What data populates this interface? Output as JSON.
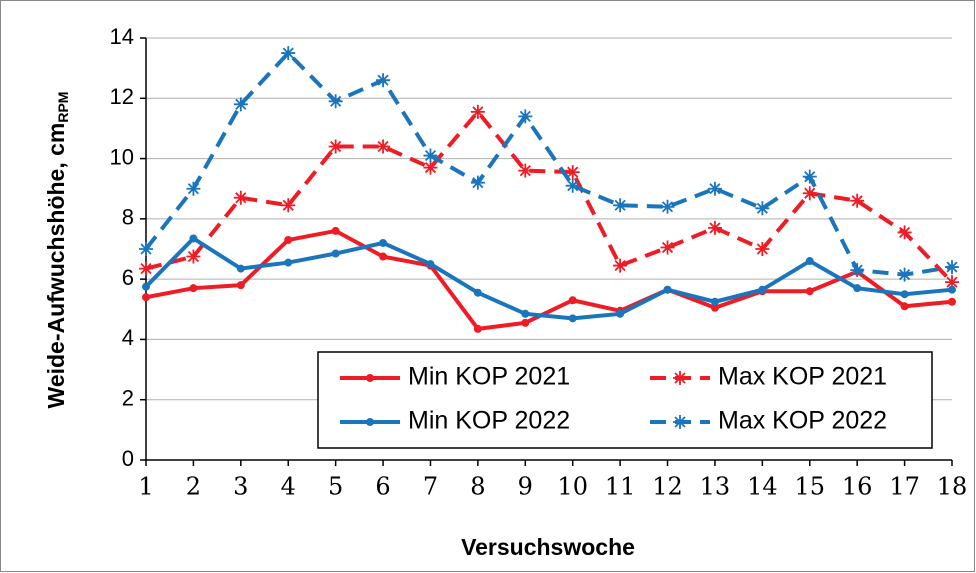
{
  "chart_data": {
    "type": "line",
    "xlabel": "Versuchswoche",
    "ylabel": "Weide-Aufwuchshöhe, cm",
    "ylabel_sub": "RPM",
    "x": [
      1,
      2,
      3,
      4,
      5,
      6,
      7,
      8,
      9,
      10,
      11,
      12,
      13,
      14,
      15,
      16,
      17,
      18
    ],
    "xlim": [
      1,
      18
    ],
    "xticks": [
      1,
      2,
      3,
      4,
      5,
      6,
      7,
      8,
      9,
      10,
      11,
      12,
      13,
      14,
      15,
      16,
      17,
      18
    ],
    "ylim": [
      0,
      14
    ],
    "yticks": [
      0,
      2,
      4,
      6,
      8,
      10,
      12,
      14
    ],
    "grid": true,
    "legend": "bottom-right",
    "series": [
      {
        "name": "Min KOP 2021",
        "color": "#ee1c25",
        "dash": false,
        "marker": "circle",
        "values": [
          5.4,
          5.7,
          5.8,
          7.3,
          7.6,
          6.75,
          6.45,
          4.35,
          4.55,
          5.3,
          4.95,
          5.65,
          5.05,
          5.6,
          5.6,
          6.25,
          5.1,
          5.25
        ]
      },
      {
        "name": "Max KOP 2021",
        "color": "#ee1c25",
        "dash": true,
        "marker": "star",
        "values": [
          6.35,
          6.75,
          8.7,
          8.45,
          10.4,
          10.4,
          9.7,
          11.55,
          9.6,
          9.55,
          6.45,
          7.05,
          7.7,
          7.0,
          8.85,
          8.6,
          7.55,
          5.9
        ]
      },
      {
        "name": "Min KOP 2022",
        "color": "#1b75bc",
        "dash": false,
        "marker": "circle",
        "values": [
          5.75,
          7.35,
          6.35,
          6.55,
          6.85,
          7.2,
          6.5,
          5.55,
          4.85,
          4.7,
          4.85,
          5.65,
          5.25,
          5.65,
          6.6,
          5.7,
          5.5,
          5.65
        ]
      },
      {
        "name": "Max KOP 2022",
        "color": "#1b75bc",
        "dash": true,
        "marker": "star",
        "values": [
          7.0,
          9.0,
          11.8,
          13.5,
          11.9,
          12.6,
          10.1,
          9.2,
          11.4,
          9.1,
          8.45,
          8.4,
          9.0,
          8.35,
          9.4,
          6.3,
          6.15,
          6.4
        ]
      }
    ]
  }
}
